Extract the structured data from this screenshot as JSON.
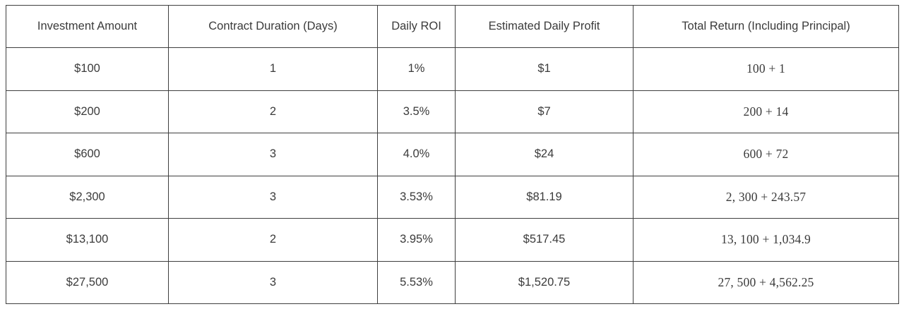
{
  "table": {
    "columns": [
      {
        "label": "Investment Amount"
      },
      {
        "label": "Contract Duration (Days)"
      },
      {
        "label": "Daily ROI"
      },
      {
        "label": "Estimated Daily Profit"
      },
      {
        "label": "Total Return (Including Principal)"
      }
    ],
    "rows": [
      {
        "investment": "$100",
        "duration": "1",
        "roi": "1%",
        "daily_profit": "$1",
        "total_return": "100 + 1"
      },
      {
        "investment": "$200",
        "duration": "2",
        "roi": "3.5%",
        "daily_profit": "$7",
        "total_return": "200 + 14"
      },
      {
        "investment": "$600",
        "duration": "3",
        "roi": "4.0%",
        "daily_profit": "$24",
        "total_return": "600 + 72"
      },
      {
        "investment": "$2,300",
        "duration": "3",
        "roi": "3.53%",
        "daily_profit": "$81.19",
        "total_return": "2, 300 + 243.57"
      },
      {
        "investment": "$13,100",
        "duration": "2",
        "roi": "3.95%",
        "daily_profit": "$517.45",
        "total_return": "13, 100 + 1,034.9"
      },
      {
        "investment": "$27,500",
        "duration": "3",
        "roi": "5.53%",
        "daily_profit": "$1,520.75",
        "total_return": "27, 500 + 4,562.25"
      }
    ],
    "row_field_order": [
      "investment",
      "duration",
      "roi",
      "daily_profit",
      "total_return"
    ],
    "colors": {
      "border": "#3f3f3f",
      "text": "#3b3b3b",
      "background": "#ffffff"
    }
  }
}
